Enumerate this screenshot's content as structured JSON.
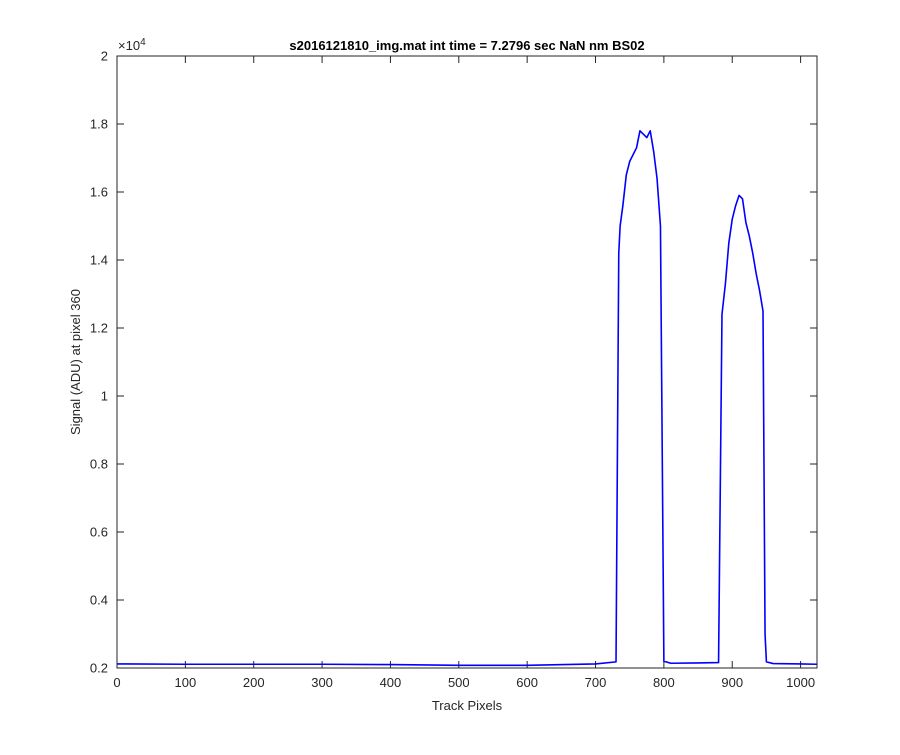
{
  "chart_data": {
    "type": "line",
    "title": "s2016121810_img.mat int time = 7.2796 sec  NaN nm BS02",
    "xlabel": "Track Pixels",
    "ylabel": "Signal (ADU) at pixel 360",
    "xlim": [
      0,
      1024
    ],
    "ylim": [
      2000,
      20000
    ],
    "y_exponent_label": "×10^4",
    "x_ticks": [
      0,
      100,
      200,
      300,
      400,
      500,
      600,
      700,
      800,
      900,
      1000
    ],
    "x_tick_labels": [
      "0",
      "100",
      "200",
      "300",
      "400",
      "500",
      "600",
      "700",
      "800",
      "900",
      "1000"
    ],
    "y_ticks": [
      2000,
      4000,
      6000,
      8000,
      10000,
      12000,
      14000,
      16000,
      18000,
      20000
    ],
    "y_tick_labels": [
      "0.2",
      "0.4",
      "0.6",
      "0.8",
      "1",
      "1.2",
      "1.4",
      "1.6",
      "1.8",
      "2"
    ],
    "grid": false,
    "line_color": "#0000ff",
    "series": [
      {
        "x": [
          0,
          100,
          200,
          300,
          400,
          500,
          600,
          700,
          730,
          734,
          736,
          740,
          745,
          750,
          755,
          760,
          765,
          770,
          775,
          780,
          785,
          790,
          795,
          800,
          810,
          850,
          880,
          885,
          890,
          895,
          900,
          905,
          910,
          915,
          920,
          925,
          930,
          935,
          940,
          945,
          948,
          950,
          960,
          1000,
          1024
        ],
        "y": [
          2120,
          2110,
          2110,
          2110,
          2100,
          2080,
          2080,
          2120,
          2180,
          14200,
          15000,
          15600,
          16500,
          16900,
          17100,
          17300,
          17800,
          17700,
          17600,
          17800,
          17200,
          16400,
          15000,
          2200,
          2140,
          2150,
          2160,
          12400,
          13300,
          14500,
          15200,
          15600,
          15900,
          15800,
          15100,
          14700,
          14200,
          13600,
          13100,
          12500,
          3000,
          2180,
          2130,
          2120,
          2110
        ]
      }
    ]
  }
}
